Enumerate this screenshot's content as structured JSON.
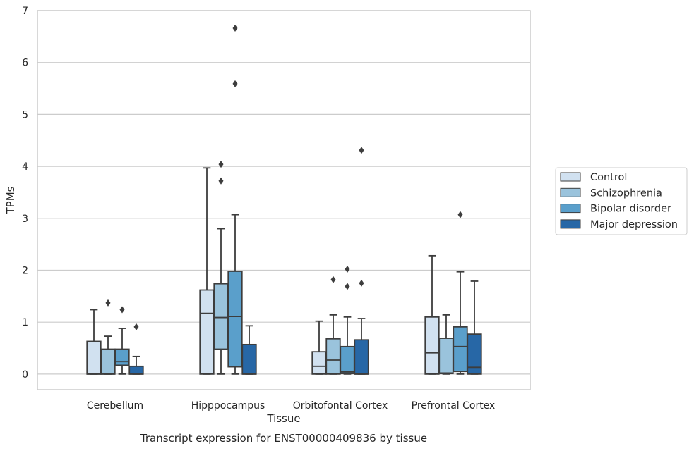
{
  "chart_data": {
    "type": "box",
    "title": "",
    "caption": "Transcript expression for ENST00000409836 by tissue",
    "xlabel": "Tissue",
    "ylabel": "TPMs",
    "ylim": [
      -0.3,
      7
    ],
    "yticks": [
      0,
      1,
      2,
      3,
      4,
      5,
      6,
      7
    ],
    "grid": "horizontal",
    "legend_position": "right",
    "categories": [
      "Cerebellum",
      "Hipppocampus",
      "Orbitofontal Cortex",
      "Prefrontal Cortex"
    ],
    "series": [
      {
        "name": "Control",
        "color": "#d1e1f0",
        "boxes": [
          {
            "min": 0,
            "q1": 0,
            "median": 0,
            "q3": 0.63,
            "max": 1.24,
            "outliers": []
          },
          {
            "min": 0,
            "q1": 0,
            "median": 1.17,
            "q3": 1.62,
            "max": 3.97,
            "outliers": []
          },
          {
            "min": 0,
            "q1": 0,
            "median": 0.15,
            "q3": 0.43,
            "max": 1.02,
            "outliers": []
          },
          {
            "min": 0,
            "q1": 0,
            "median": 0.41,
            "q3": 1.1,
            "max": 2.28,
            "outliers": []
          }
        ]
      },
      {
        "name": "Schizophrenia",
        "color": "#9ac3dc",
        "boxes": [
          {
            "min": 0,
            "q1": 0,
            "median": 0,
            "q3": 0.48,
            "max": 0.73,
            "outliers": [
              1.37
            ]
          },
          {
            "min": 0,
            "q1": 0.48,
            "median": 1.09,
            "q3": 1.74,
            "max": 2.8,
            "outliers": [
              3.72,
              4.04
            ]
          },
          {
            "min": 0,
            "q1": 0,
            "median": 0.27,
            "q3": 0.68,
            "max": 1.14,
            "outliers": [
              1.82
            ]
          },
          {
            "min": 0,
            "q1": 0.01,
            "median": 0.02,
            "q3": 0.69,
            "max": 1.14,
            "outliers": []
          }
        ]
      },
      {
        "name": "Bipolar disorder",
        "color": "#5a9fcb",
        "boxes": [
          {
            "min": 0,
            "q1": 0.17,
            "median": 0.24,
            "q3": 0.48,
            "max": 0.88,
            "outliers": [
              1.24
            ]
          },
          {
            "min": 0,
            "q1": 0.14,
            "median": 1.11,
            "q3": 1.98,
            "max": 3.07,
            "outliers": [
              5.59,
              6.66
            ]
          },
          {
            "min": 0,
            "q1": 0.01,
            "median": 0.04,
            "q3": 0.53,
            "max": 1.1,
            "outliers": [
              1.69,
              2.02
            ]
          },
          {
            "min": 0,
            "q1": 0.05,
            "median": 0.53,
            "q3": 0.91,
            "max": 1.97,
            "outliers": [
              3.07
            ]
          }
        ]
      },
      {
        "name": "Major depression",
        "color": "#2767a6",
        "boxes": [
          {
            "min": 0,
            "q1": 0,
            "median": 0,
            "q3": 0.15,
            "max": 0.34,
            "outliers": [
              0.91
            ]
          },
          {
            "min": 0,
            "q1": 0,
            "median": 0,
            "q3": 0.57,
            "max": 0.93,
            "outliers": []
          },
          {
            "min": 0,
            "q1": 0,
            "median": 0,
            "q3": 0.66,
            "max": 1.07,
            "outliers": [
              1.75,
              4.31
            ]
          },
          {
            "min": 0,
            "q1": 0,
            "median": 0.13,
            "q3": 0.77,
            "max": 1.79,
            "outliers": []
          }
        ]
      }
    ]
  }
}
